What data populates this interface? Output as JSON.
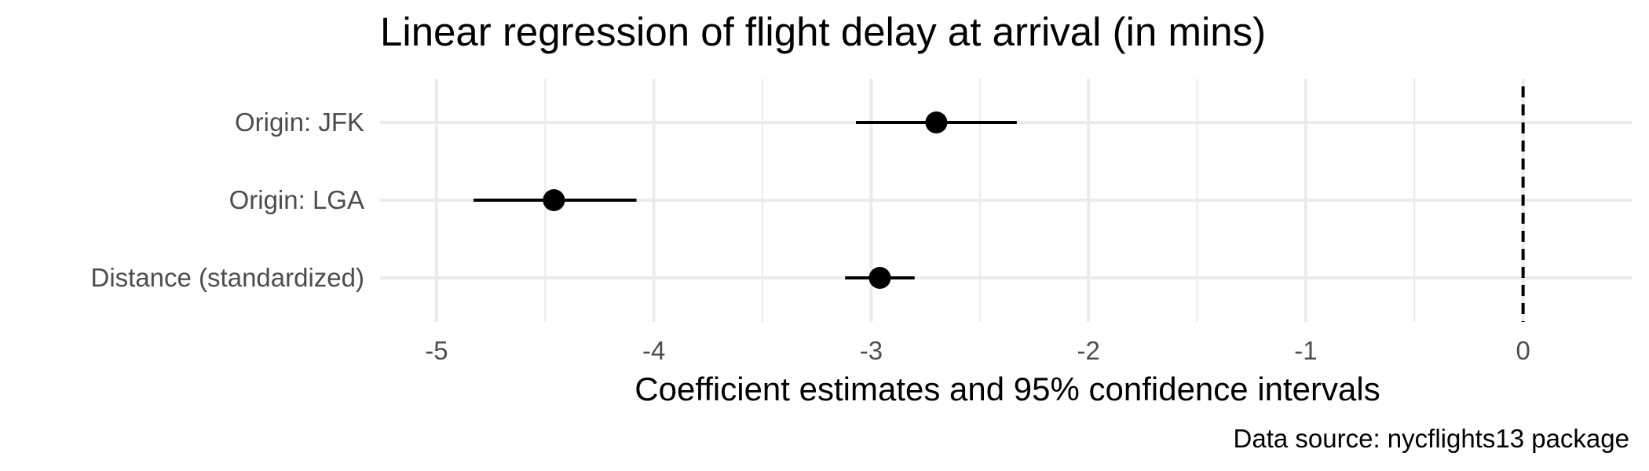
{
  "chart_data": {
    "type": "scatter",
    "subtype": "coefficient-plot",
    "title": "Linear regression of flight delay at arrival (in mins)",
    "xlabel": "Coefficient estimates and 95% confidence intervals",
    "ylabel": "",
    "caption": "Data source: nycflights13 package",
    "xlim": [
      -5.26,
      0.5
    ],
    "x_ticks": [
      -5,
      -4,
      -3,
      -2,
      -1,
      0
    ],
    "x_tick_labels": [
      "-5",
      "-4",
      "-3",
      "-2",
      "-1",
      "0"
    ],
    "x_minor_ticks": [
      -4.5,
      -3.5,
      -2.5,
      -1.5,
      -0.5
    ],
    "reference_line": {
      "x": 0,
      "style": "dashed"
    },
    "grid": true,
    "legend": "none",
    "categories": [
      "Origin: JFK",
      "Origin: LGA",
      "Distance (standardized)"
    ],
    "series": [
      {
        "estimate": [
          -2.7,
          -4.46,
          -2.96
        ],
        "ci_low": [
          -3.07,
          -4.83,
          -3.12
        ],
        "ci_high": [
          -2.33,
          -4.08,
          -2.8
        ]
      }
    ],
    "colors": {
      "point": "#000000",
      "grid": "#ebebeb",
      "tick_text": "#4d4d4d"
    }
  }
}
